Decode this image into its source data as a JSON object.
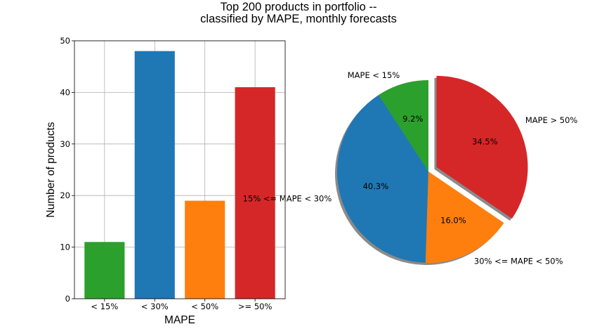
{
  "title_lines": [
    "Top 200 products in portfolio --",
    "classified by MAPE, monthly forecasts"
  ],
  "chart_data": [
    {
      "type": "bar",
      "categories": [
        "< 15%",
        "< 30%",
        "< 50%",
        ">= 50%"
      ],
      "values": [
        11,
        48,
        19,
        41
      ],
      "colors": [
        "#2ca02c",
        "#1f77b4",
        "#ff7f0e",
        "#d62728"
      ],
      "xlabel": "MAPE",
      "ylabel": "Number of products",
      "ylim": [
        0,
        50
      ],
      "yticks": [
        0,
        10,
        20,
        30,
        40,
        50
      ],
      "ytick_labels": [
        "0",
        "10",
        "20",
        "30",
        "40",
        "50"
      ],
      "grid": true
    },
    {
      "type": "pie",
      "start_angle": 90,
      "direction": "counterclockwise",
      "shadow": true,
      "slices": [
        {
          "label": "MAPE < 15%",
          "value": 9.2,
          "pct_label": "9.2%",
          "color": "#2ca02c",
          "explode": 0
        },
        {
          "label": "15% <= MAPE < 30%",
          "value": 40.3,
          "pct_label": "40.3%",
          "color": "#1f77b4",
          "explode": 0
        },
        {
          "label": "30% <= MAPE < 50%",
          "value": 16.0,
          "pct_label": "16.0%",
          "color": "#ff7f0e",
          "explode": 0
        },
        {
          "label": "MAPE > 50%",
          "value": 34.5,
          "pct_label": "34.5%",
          "color": "#d62728",
          "explode": 0.1
        }
      ]
    }
  ]
}
